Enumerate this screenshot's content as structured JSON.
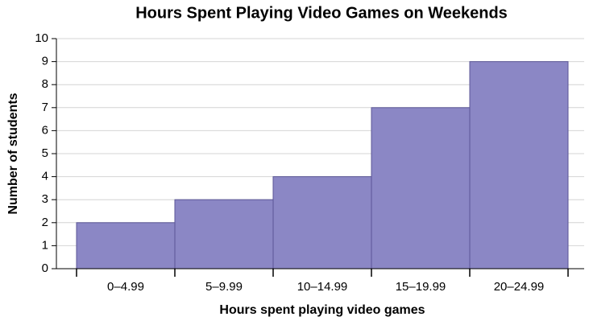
{
  "chart_data": {
    "type": "bar",
    "title": "Hours Spent Playing Video Games on Weekends",
    "x_label": "Hours spent playing video games",
    "y_label": "Number of students",
    "categories": [
      "0–4.99",
      "5–9.99",
      "10–14.99",
      "15–19.99",
      "20–24.99"
    ],
    "values": [
      2,
      3,
      4,
      7,
      9
    ],
    "color": "#8b87c5",
    "ylim": [
      0,
      10
    ],
    "yticks": [
      0,
      1,
      2,
      3,
      4,
      5,
      6,
      7,
      8,
      9,
      10
    ],
    "grid": true
  }
}
